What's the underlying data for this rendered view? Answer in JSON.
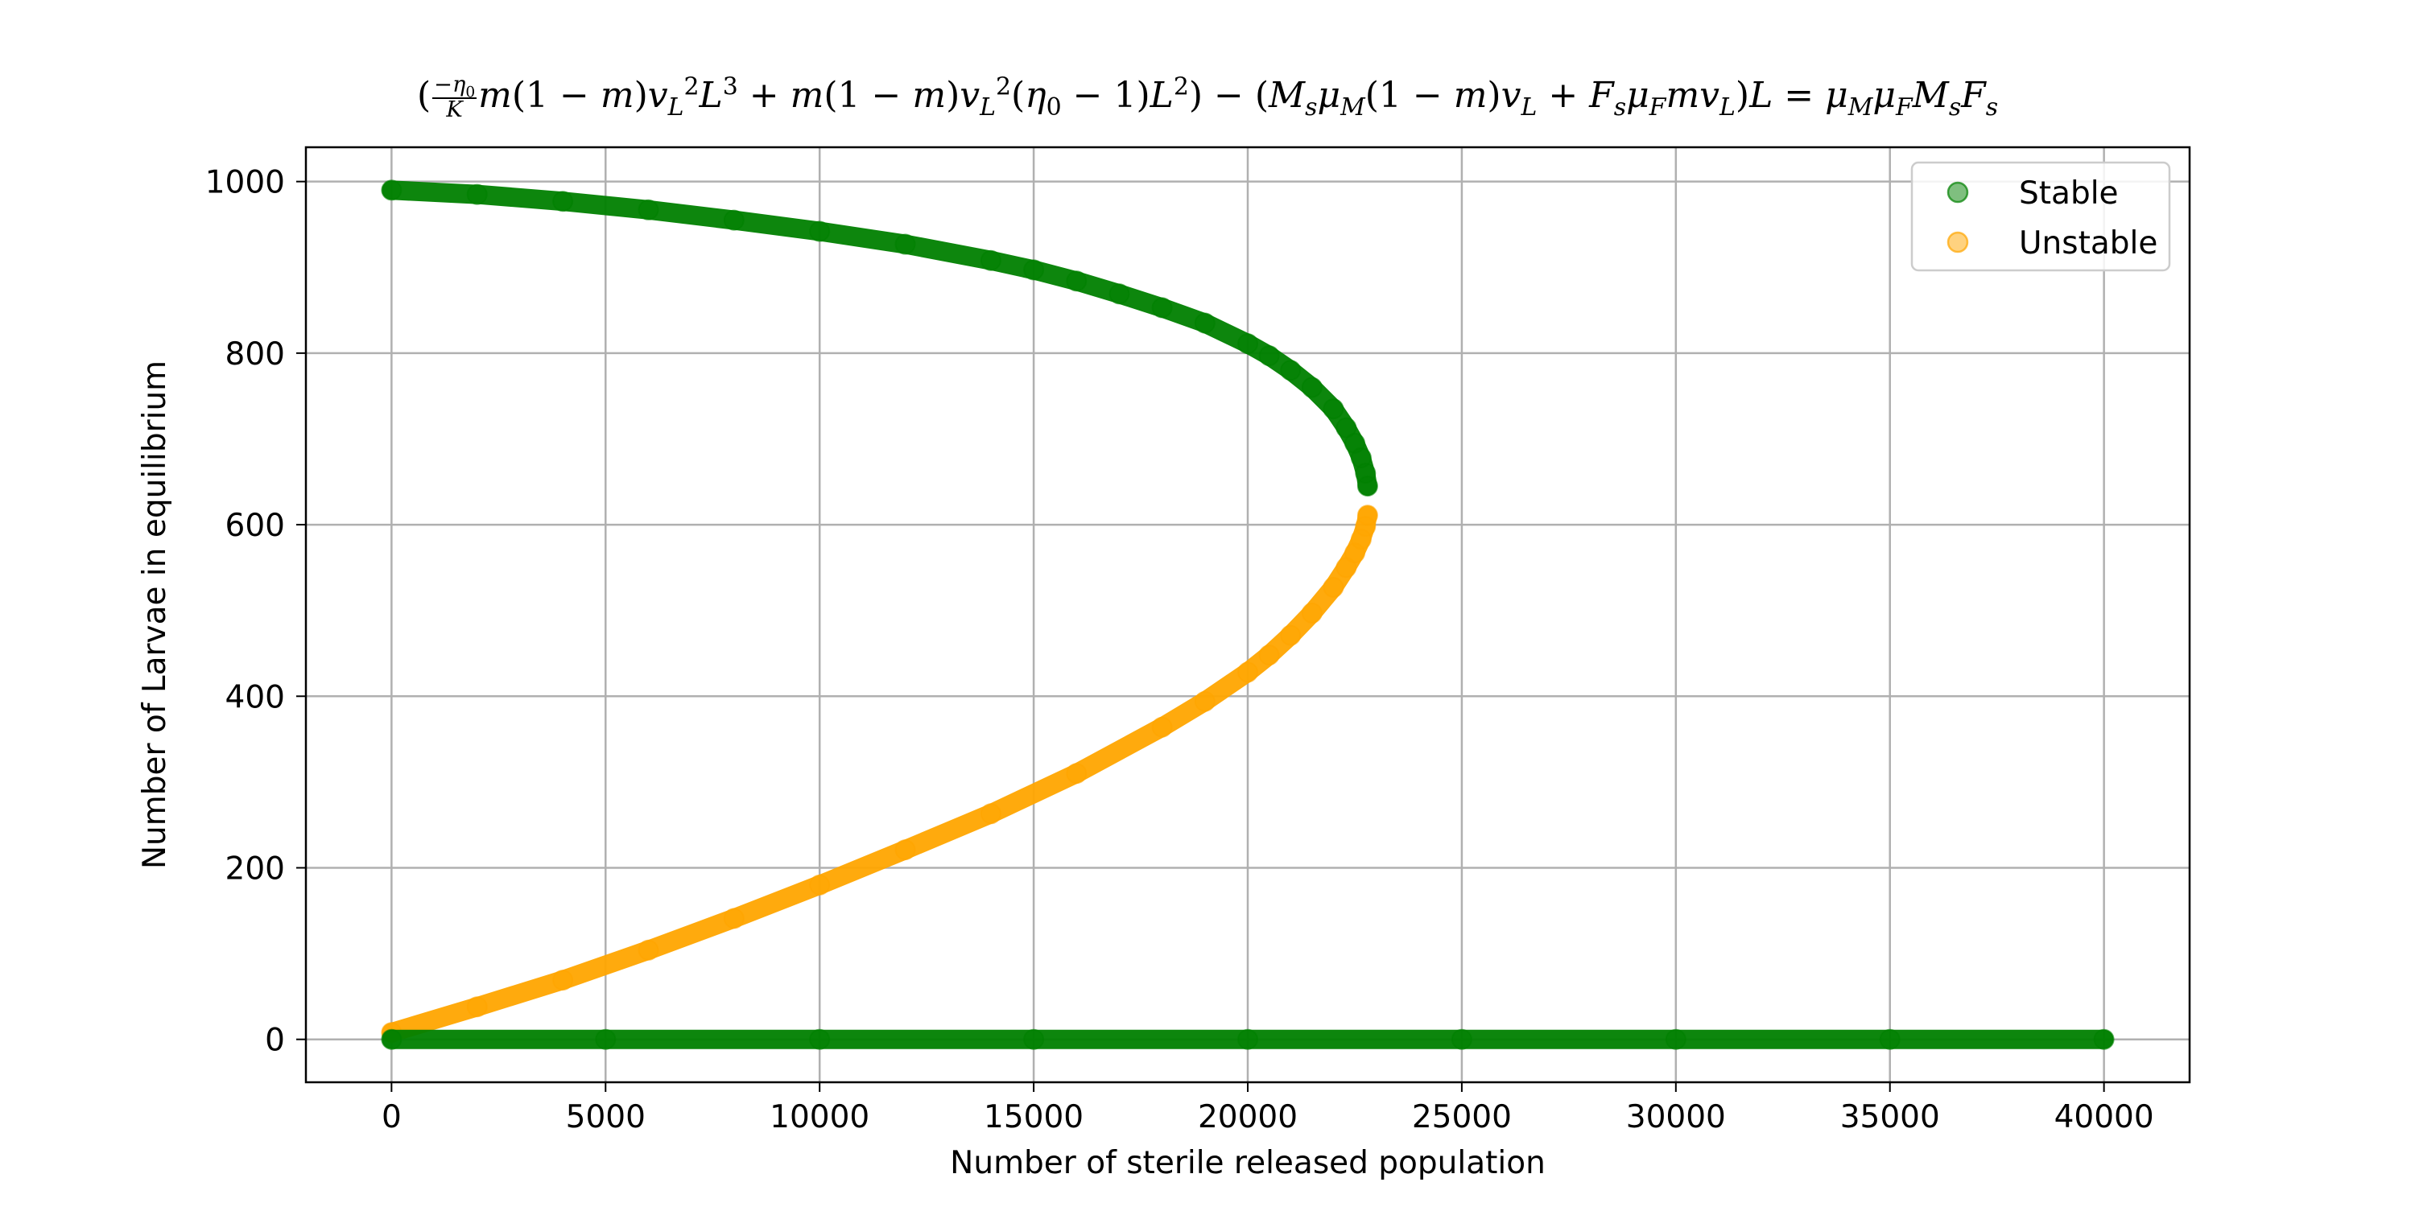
{
  "chart_data": {
    "type": "scatter",
    "title": "(−η₀/K m(1−m)v_L²L³ + m(1−m)v_L²(η₀−1)L²) − (M_sμ_M(1−m)v_L + F_sμ_F m v_L)L = μ_Mμ_F M_sF_s",
    "xlabel": "Number of sterile released population",
    "ylabel": "Number of Larvae in equilibrium",
    "xlim": [
      -2000,
      42000
    ],
    "ylim": [
      -50,
      1040
    ],
    "xticks": [
      0,
      5000,
      10000,
      15000,
      20000,
      25000,
      30000,
      35000,
      40000
    ],
    "yticks": [
      0,
      200,
      400,
      600,
      800,
      1000
    ],
    "grid": true,
    "legend_position": "top-right",
    "series": [
      {
        "name": "Stable",
        "color": "#008000",
        "segments": [
          {
            "x": [
              0,
              2000,
              4000,
              6000,
              8000,
              10000,
              12000,
              14000,
              15000,
              16000,
              17000,
              18000,
              19000,
              20000,
              20500,
              21000,
              21500,
              22000,
              22300,
              22500,
              22650,
              22750,
              22800
            ],
            "y": [
              990,
              985,
              977,
              967,
              955,
              942,
              927,
              908,
              897,
              884,
              869,
              853,
              835,
              811,
              797,
              780,
              760,
              735,
              713,
              695,
              678,
              660,
              645
            ]
          },
          {
            "x": [
              0,
              5000,
              10000,
              15000,
              20000,
              25000,
              30000,
              35000,
              40000
            ],
            "y": [
              0,
              0,
              0,
              0,
              0,
              0,
              0,
              0,
              0
            ]
          }
        ]
      },
      {
        "name": "Unstable",
        "color": "#FFA500",
        "segments": [
          {
            "x": [
              0,
              2000,
              4000,
              6000,
              8000,
              10000,
              12000,
              14000,
              16000,
              18000,
              19000,
              20000,
              20500,
              21000,
              21500,
              22000,
              22300,
              22500,
              22650,
              22750,
              22800
            ],
            "y": [
              8,
              38,
              69,
              104,
              141,
              180,
              221,
              263,
              310,
              364,
              394,
              428,
              448,
              471,
              497,
              527,
              550,
              567,
              583,
              598,
              611
            ]
          }
        ]
      }
    ]
  }
}
